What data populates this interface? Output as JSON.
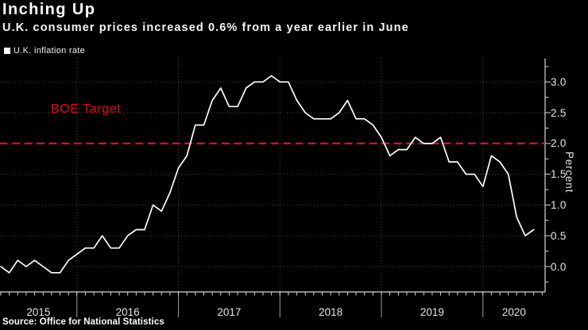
{
  "header": {
    "title": "Inching Up",
    "subtitle": "U.K. consumer prices increased 0.6% from a year earlier in June"
  },
  "legend": {
    "label": "U.K. inflation rate"
  },
  "annotation": {
    "target_label": "BOE Target"
  },
  "axis": {
    "y_title": "Percent"
  },
  "source": {
    "text": "Source: Office for National Statistics"
  },
  "colors": {
    "background": "#000000",
    "series_line": "#ffffff",
    "target_line": "#cc1233",
    "target_text": "#e30a14",
    "grid": "#4f4f4f",
    "axis_line": "#d6d6d6",
    "year_separator": "#9b9b9b",
    "tick_text": "#e6e6e6"
  },
  "chart_data": {
    "type": "line",
    "title": "Inching Up",
    "subtitle": "U.K. consumer prices increased 0.6% from a year earlier in June",
    "series_name": "U.K. inflation rate",
    "ylabel": "Percent",
    "frequency": "monthly",
    "first_point": "2015-03",
    "last_point": "2020-06",
    "x_tick_labels": [
      "2015",
      "2016",
      "2017",
      "2018",
      "2019",
      "2020"
    ],
    "y_ticks": [
      0.0,
      0.5,
      1.0,
      1.5,
      2.0,
      2.5,
      3.0
    ],
    "ylim": [
      -0.4,
      3.4
    ],
    "grid": "dotted",
    "legend_position": "top-left",
    "target_line_value": 2.0,
    "target_line_label": "BOE Target",
    "values": [
      0.0,
      -0.1,
      0.1,
      0.0,
      0.1,
      0.0,
      -0.1,
      -0.1,
      0.1,
      0.2,
      0.3,
      0.3,
      0.5,
      0.3,
      0.3,
      0.5,
      0.6,
      0.6,
      1.0,
      0.9,
      1.2,
      1.6,
      1.8,
      2.3,
      2.3,
      2.7,
      2.9,
      2.6,
      2.6,
      2.9,
      3.0,
      3.0,
      3.1,
      3.0,
      3.0,
      2.7,
      2.5,
      2.4,
      2.4,
      2.4,
      2.5,
      2.7,
      2.4,
      2.4,
      2.3,
      2.1,
      1.8,
      1.9,
      1.9,
      2.1,
      2.0,
      2.0,
      2.1,
      1.7,
      1.7,
      1.5,
      1.5,
      1.3,
      1.8,
      1.7,
      1.5,
      0.8,
      0.5,
      0.6
    ]
  }
}
